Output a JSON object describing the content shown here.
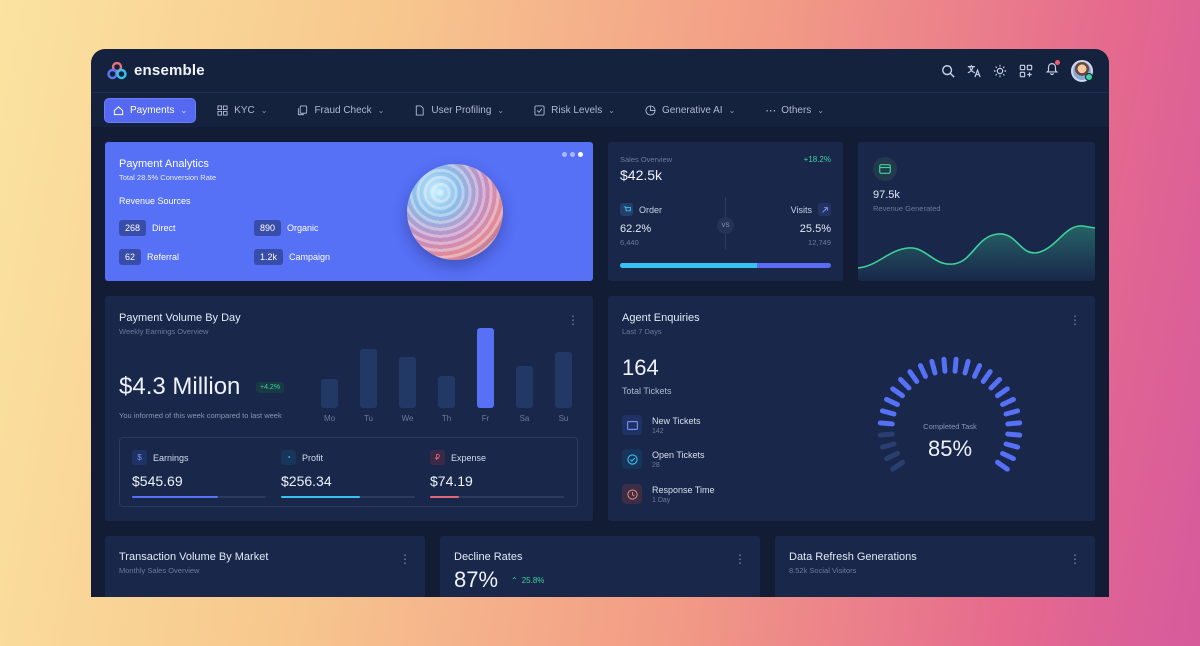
{
  "app": {
    "name": "ensemble"
  },
  "header": {
    "icons": [
      "search-icon",
      "translate-icon",
      "sun-icon",
      "apps-icon",
      "bell-icon",
      "avatar"
    ]
  },
  "nav": {
    "items": [
      {
        "label": "Payments",
        "icon": "home-icon",
        "active": true
      },
      {
        "label": "KYC",
        "icon": "grid-icon"
      },
      {
        "label": "Fraud Check",
        "icon": "copy-icon"
      },
      {
        "label": "User Profiling",
        "icon": "file-icon"
      },
      {
        "label": "Risk Levels",
        "icon": "check-square-icon"
      },
      {
        "label": "Generative AI",
        "icon": "pie-icon"
      },
      {
        "label": "Others",
        "icon": "more-horizontal-icon"
      }
    ]
  },
  "analytics": {
    "title": "Payment Analytics",
    "subtitle": "Total 28.5% Conversion Rate",
    "section": "Revenue Sources",
    "sources": [
      {
        "value": "268",
        "label": "Direct"
      },
      {
        "value": "890",
        "label": "Organic"
      },
      {
        "value": "62",
        "label": "Referral"
      },
      {
        "value": "1.2k",
        "label": "Campaign"
      }
    ]
  },
  "sales": {
    "label": "Sales Overview",
    "change": "+18.2%",
    "value": "$42.5k",
    "order_label": "Order",
    "order_pct": "62.2%",
    "order_count": "6,440",
    "vs": "VS",
    "visits_label": "Visits",
    "visits_pct": "25.5%",
    "visits_count": "12,749",
    "progress": 0.65
  },
  "revenue": {
    "value": "97.5k",
    "label": "Revenue Generated"
  },
  "payment_volume": {
    "title": "Payment Volume By Day",
    "subtitle": "Weekly Earnings Overview",
    "value": "$4.3 Million",
    "badge": "+4.2%",
    "note": "You informed of this week compared to last week",
    "days": [
      "Mo",
      "Tu",
      "We",
      "Th",
      "Fr",
      "Sa",
      "Su"
    ],
    "heights": [
      0.36,
      0.74,
      0.64,
      0.4,
      1.0,
      0.52,
      0.7
    ],
    "highlight": 4,
    "metrics": [
      {
        "label": "Earnings",
        "value": "$545.69",
        "icon": "dollar-icon",
        "progress": 0.64,
        "color": "#5670f6"
      },
      {
        "label": "Profit",
        "value": "$256.34",
        "icon": "pie-icon",
        "progress": 0.59,
        "color": "#38c2f0"
      },
      {
        "label": "Expense",
        "value": "$74.19",
        "icon": "currency-icon",
        "progress": 0.22,
        "color": "#e0677b"
      }
    ]
  },
  "agent": {
    "title": "Agent Enquiries",
    "subtitle": "Last 7 Days",
    "total": "164",
    "total_label": "Total Tickets",
    "items": [
      {
        "label": "New Tickets",
        "value": "142",
        "icon": "ticket-icon",
        "color": "#5670f6",
        "bg": "#1f3264"
      },
      {
        "label": "Open Tickets",
        "value": "28",
        "icon": "check-circle-icon",
        "color": "#38c2f0",
        "bg": "#17345a"
      },
      {
        "label": "Response Time",
        "value": "1 Day",
        "icon": "clock-icon",
        "color": "#e9806a",
        "bg": "#3a2d45"
      }
    ],
    "gauge_label": "Completed Task",
    "gauge_value": "85%",
    "gauge_fraction": 0.85
  },
  "bottom": {
    "transaction": {
      "title": "Transaction Volume By Market",
      "subtitle": "Monthly Sales Overview"
    },
    "decline": {
      "title": "Decline Rates",
      "value": "87%",
      "change": "25.8%"
    },
    "refresh": {
      "title": "Data Refresh Generations",
      "subtitle": "8.52k Social Visitors"
    }
  }
}
